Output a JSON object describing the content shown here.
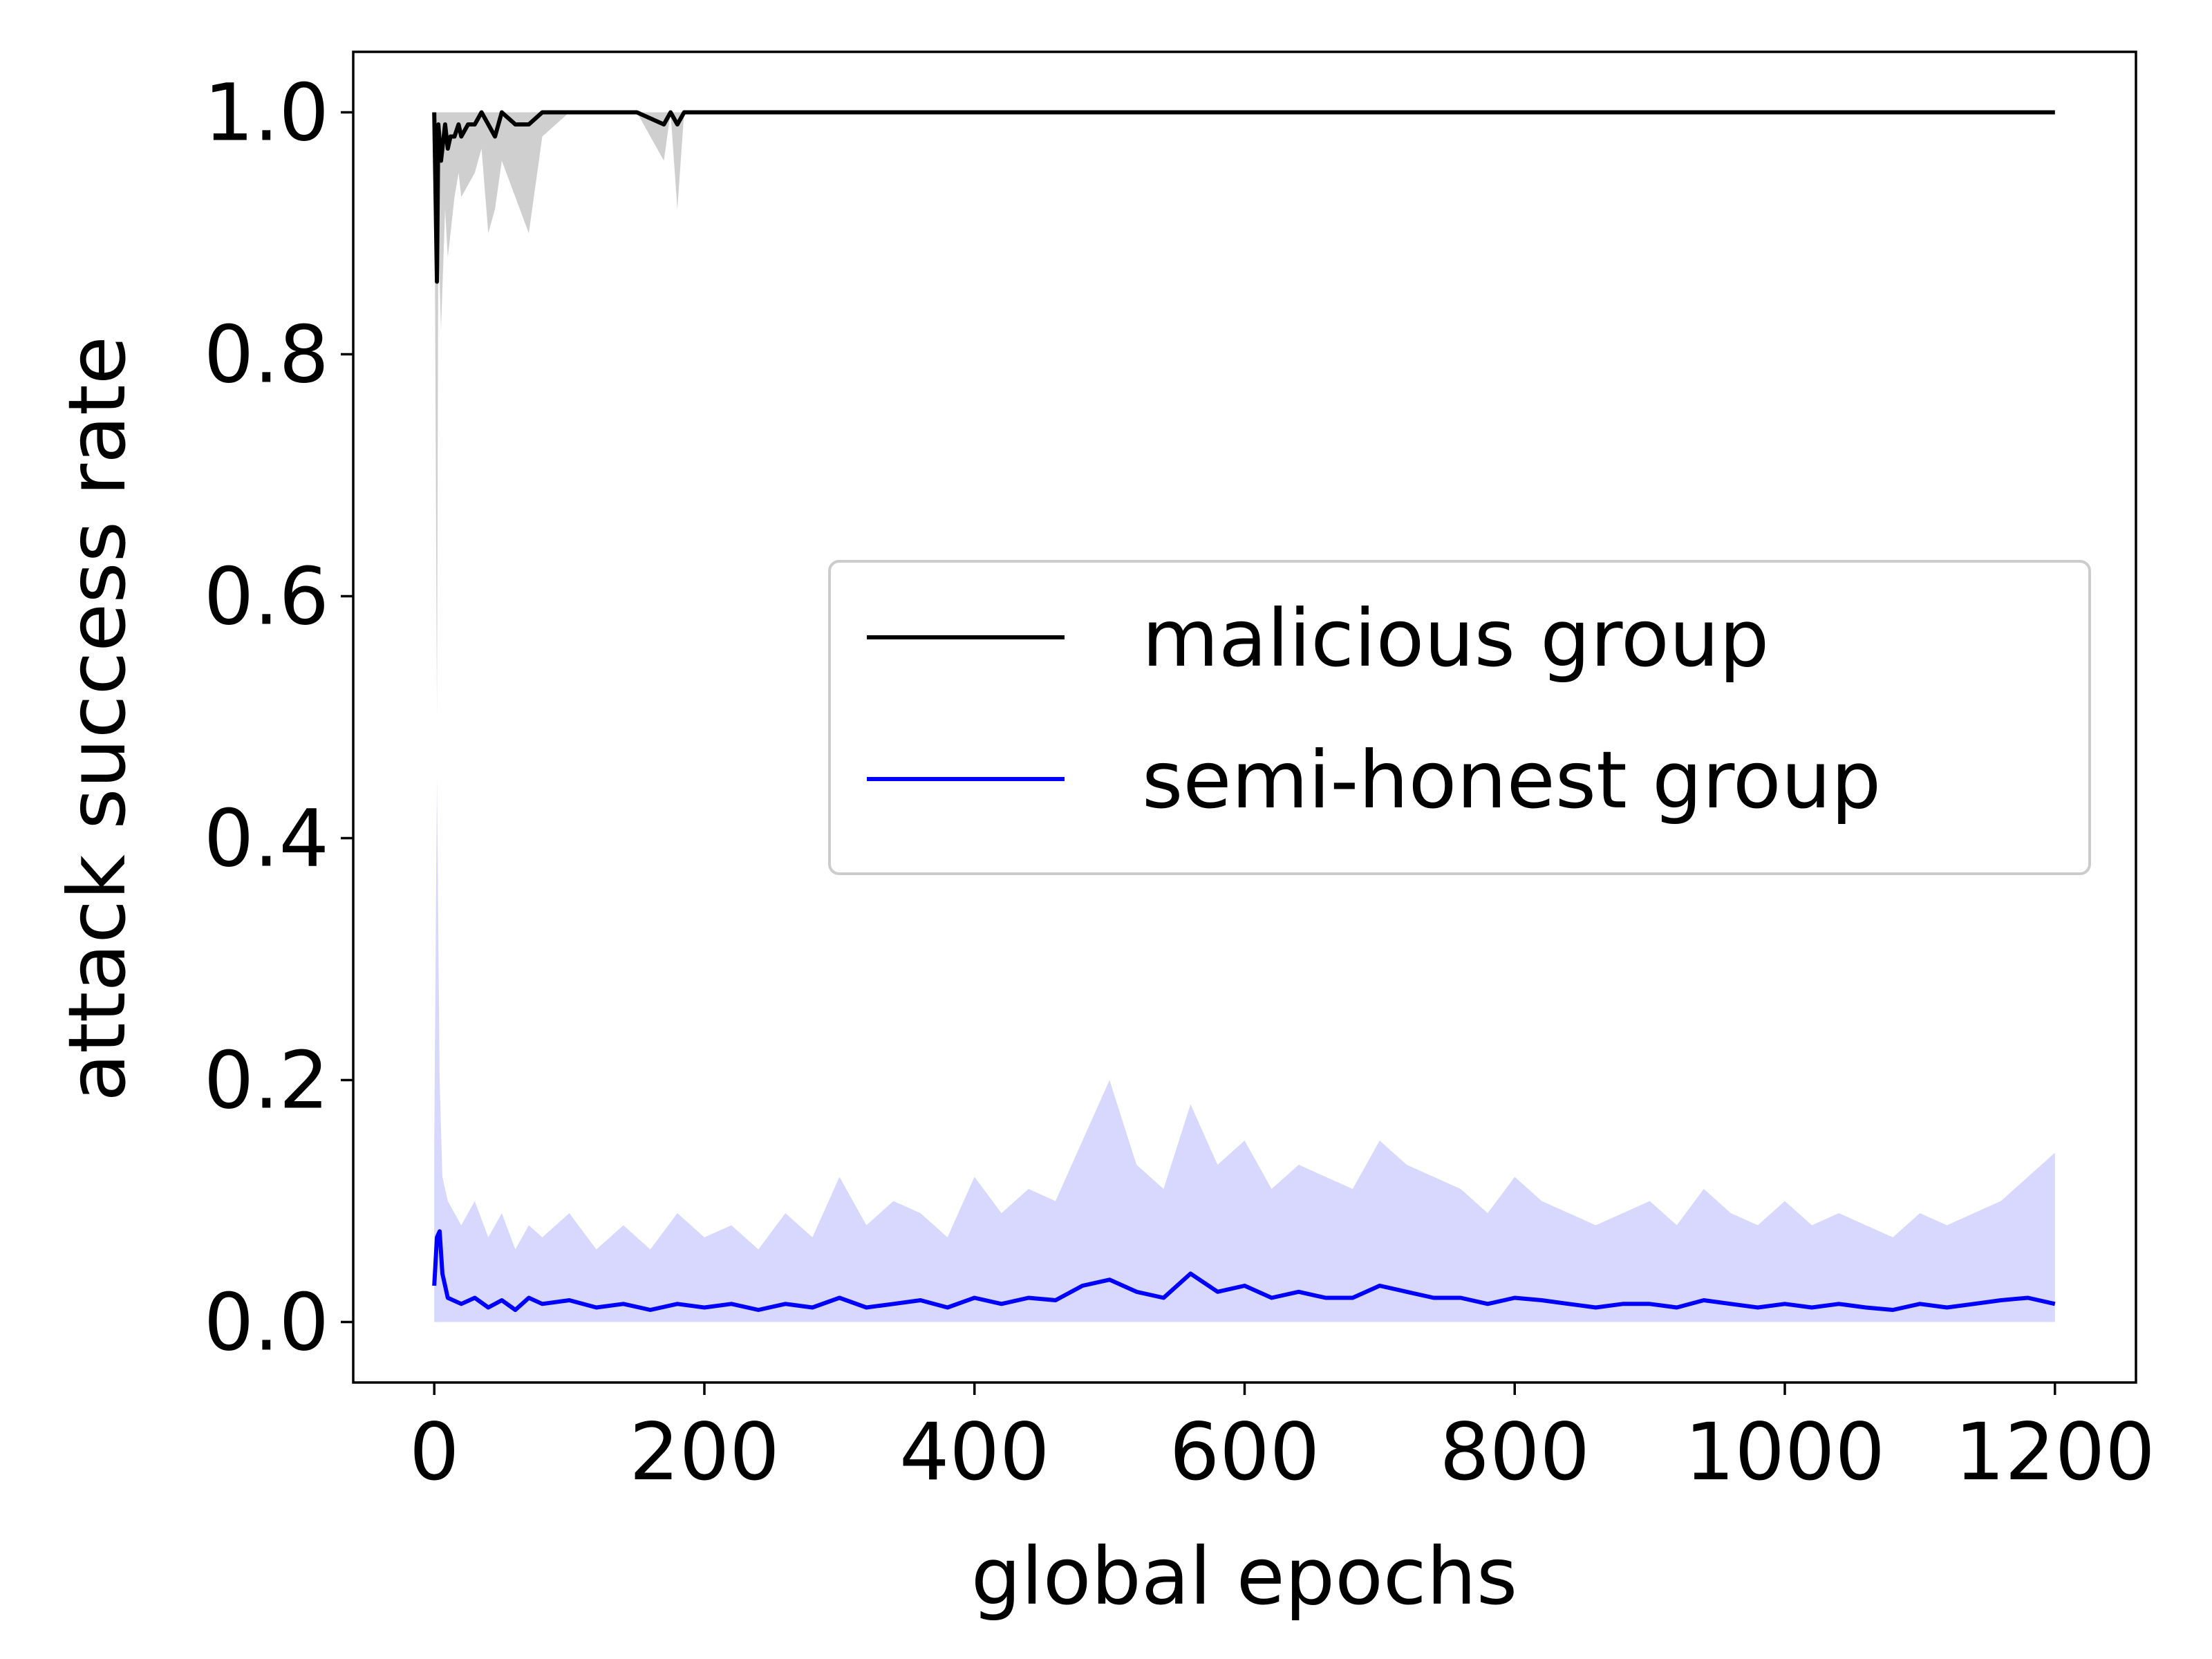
{
  "chart_data": {
    "type": "line",
    "title": "",
    "xlabel": "global epochs",
    "ylabel": "attack success rate",
    "xlim": [
      -60,
      1260
    ],
    "ylim": [
      -0.05,
      1.05
    ],
    "xticks": [
      0,
      200,
      400,
      600,
      800,
      1000,
      1200
    ],
    "yticks": [
      0.0,
      0.2,
      0.4,
      0.6,
      0.8,
      1.0
    ],
    "xtick_labels": [
      "0",
      "200",
      "400",
      "600",
      "800",
      "1000",
      "1200"
    ],
    "ytick_labels": [
      "0.0",
      "0.2",
      "0.4",
      "0.6",
      "0.8",
      "1.0"
    ],
    "grid": false,
    "legend_position": "center-right",
    "series": [
      {
        "name": "malicious group",
        "color": "#000000",
        "band_color": "#bbbbbb",
        "x": [
          0,
          2,
          3,
          5,
          8,
          10,
          12,
          15,
          18,
          20,
          25,
          30,
          35,
          40,
          45,
          50,
          60,
          70,
          80,
          100,
          120,
          150,
          170,
          175,
          180,
          185,
          200,
          300,
          400,
          500,
          600,
          700,
          800,
          900,
          1000,
          1100,
          1200
        ],
        "mean": [
          1.0,
          0.86,
          0.99,
          0.96,
          0.99,
          0.97,
          0.98,
          0.98,
          0.99,
          0.98,
          0.99,
          0.99,
          1.0,
          0.99,
          0.98,
          1.0,
          0.99,
          0.99,
          1.0,
          1.0,
          1.0,
          1.0,
          0.99,
          1.0,
          0.99,
          1.0,
          1.0,
          1.0,
          1.0,
          1.0,
          1.0,
          1.0,
          1.0,
          1.0,
          1.0,
          1.0,
          1.0
        ],
        "lower": [
          1.0,
          0.5,
          0.9,
          0.82,
          0.92,
          0.88,
          0.9,
          0.93,
          0.95,
          0.93,
          0.94,
          0.95,
          0.97,
          0.9,
          0.92,
          0.96,
          0.93,
          0.9,
          0.98,
          1.0,
          1.0,
          1.0,
          0.96,
          1.0,
          0.92,
          1.0,
          1.0,
          1.0,
          1.0,
          1.0,
          1.0,
          1.0,
          1.0,
          1.0,
          1.0,
          1.0,
          1.0
        ],
        "upper": [
          1.0,
          1.0,
          1.0,
          1.0,
          1.0,
          1.0,
          1.0,
          1.0,
          1.0,
          1.0,
          1.0,
          1.0,
          1.0,
          1.0,
          1.0,
          1.0,
          1.0,
          1.0,
          1.0,
          1.0,
          1.0,
          1.0,
          1.0,
          1.0,
          1.0,
          1.0,
          1.0,
          1.0,
          1.0,
          1.0,
          1.0,
          1.0,
          1.0,
          1.0,
          1.0,
          1.0,
          1.0
        ]
      },
      {
        "name": "semi-honest group",
        "color": "#0000ff",
        "band_color": "#c8c8ff",
        "x": [
          0,
          2,
          4,
          6,
          10,
          20,
          30,
          40,
          50,
          60,
          70,
          80,
          100,
          120,
          140,
          160,
          180,
          200,
          220,
          240,
          260,
          280,
          300,
          320,
          340,
          360,
          380,
          400,
          420,
          440,
          460,
          480,
          500,
          520,
          540,
          560,
          580,
          600,
          620,
          640,
          660,
          680,
          700,
          720,
          740,
          760,
          780,
          800,
          820,
          840,
          860,
          880,
          900,
          920,
          940,
          960,
          980,
          1000,
          1020,
          1040,
          1060,
          1080,
          1100,
          1120,
          1140,
          1160,
          1180,
          1200
        ],
        "mean": [
          0.03,
          0.07,
          0.075,
          0.04,
          0.02,
          0.015,
          0.02,
          0.012,
          0.018,
          0.01,
          0.02,
          0.015,
          0.018,
          0.012,
          0.015,
          0.01,
          0.015,
          0.012,
          0.015,
          0.01,
          0.015,
          0.012,
          0.02,
          0.012,
          0.015,
          0.018,
          0.012,
          0.02,
          0.015,
          0.02,
          0.018,
          0.03,
          0.035,
          0.025,
          0.02,
          0.04,
          0.025,
          0.03,
          0.02,
          0.025,
          0.02,
          0.02,
          0.03,
          0.025,
          0.02,
          0.02,
          0.015,
          0.02,
          0.018,
          0.015,
          0.012,
          0.015,
          0.015,
          0.012,
          0.018,
          0.015,
          0.012,
          0.015,
          0.012,
          0.015,
          0.012,
          0.01,
          0.015,
          0.012,
          0.015,
          0.018,
          0.02,
          0.015
        ],
        "lower": [
          0.0,
          0.0,
          0.0,
          0.0,
          0.0,
          0.0,
          0.0,
          0.0,
          0.0,
          0.0,
          0.0,
          0.0,
          0.0,
          0.0,
          0.0,
          0.0,
          0.0,
          0.0,
          0.0,
          0.0,
          0.0,
          0.0,
          0.0,
          0.0,
          0.0,
          0.0,
          0.0,
          0.0,
          0.0,
          0.0,
          0.0,
          0.0,
          0.0,
          0.0,
          0.0,
          0.0,
          0.0,
          0.0,
          0.0,
          0.0,
          0.0,
          0.0,
          0.0,
          0.0,
          0.0,
          0.0,
          0.0,
          0.0,
          0.0,
          0.0,
          0.0,
          0.0,
          0.0,
          0.0,
          0.0,
          0.0,
          0.0,
          0.0,
          0.0,
          0.0,
          0.0,
          0.0,
          0.0,
          0.0,
          0.0,
          0.0,
          0.0,
          0.0
        ],
        "upper": [
          0.15,
          0.45,
          0.2,
          0.12,
          0.1,
          0.08,
          0.1,
          0.07,
          0.09,
          0.06,
          0.08,
          0.07,
          0.09,
          0.06,
          0.08,
          0.06,
          0.09,
          0.07,
          0.08,
          0.06,
          0.09,
          0.07,
          0.12,
          0.08,
          0.1,
          0.09,
          0.07,
          0.12,
          0.09,
          0.11,
          0.1,
          0.15,
          0.2,
          0.13,
          0.11,
          0.18,
          0.13,
          0.15,
          0.11,
          0.13,
          0.12,
          0.11,
          0.15,
          0.13,
          0.12,
          0.11,
          0.09,
          0.12,
          0.1,
          0.09,
          0.08,
          0.09,
          0.1,
          0.08,
          0.11,
          0.09,
          0.08,
          0.1,
          0.08,
          0.09,
          0.08,
          0.07,
          0.09,
          0.08,
          0.09,
          0.1,
          0.12,
          0.14
        ]
      }
    ]
  }
}
